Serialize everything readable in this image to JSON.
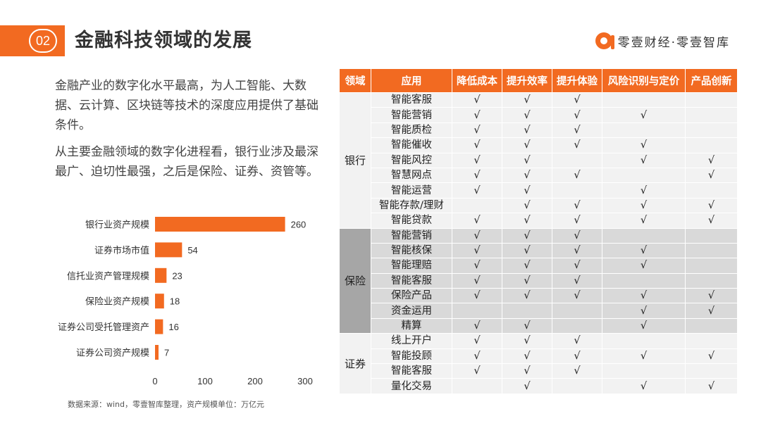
{
  "header": {
    "section_number": "02",
    "title": "金融科技领域的发展",
    "brand": "零壹财经·零壹智库"
  },
  "intro": {
    "p1": "金融产业的数字化水平最高，为人工智能、大数据、云计算、区块链等技术的深度应用提供了基础条件。",
    "p2": "从主要金融领域的数字化进程看，银行业涉及最深最广、迫切性最强，之后是保险、证券、资管等。"
  },
  "chart_data": {
    "type": "bar",
    "orientation": "horizontal",
    "categories": [
      "银行业资产规模",
      "证券市场市值",
      "信托业资产管理规模",
      "保险业资产规模",
      "证券公司受托管理资产",
      "证券公司资产规模"
    ],
    "values": [
      260,
      54,
      23,
      18,
      16,
      7
    ],
    "xlim": [
      0,
      300
    ],
    "xticks": [
      0,
      100,
      200,
      300
    ],
    "bar_color": "#f26a21",
    "source": "数据来源：wind，零壹智库整理，资产规模单位：万亿元"
  },
  "table": {
    "headers": [
      "领域",
      "应用",
      "降低成本",
      "提升效率",
      "提升体验",
      "风险识别与定价",
      "产品创新"
    ],
    "check": "√",
    "groups": [
      {
        "domain": "银行",
        "style": "bank",
        "rows": [
          {
            "app": "智能客服",
            "marks": [
              1,
              1,
              1,
              0,
              0
            ]
          },
          {
            "app": "智能营销",
            "marks": [
              1,
              1,
              1,
              1,
              0
            ]
          },
          {
            "app": "智能质检",
            "marks": [
              1,
              1,
              1,
              0,
              0
            ]
          },
          {
            "app": "智能催收",
            "marks": [
              1,
              1,
              1,
              1,
              0
            ]
          },
          {
            "app": "智能风控",
            "marks": [
              1,
              1,
              0,
              1,
              1
            ]
          },
          {
            "app": "智慧网点",
            "marks": [
              1,
              1,
              1,
              0,
              1
            ]
          },
          {
            "app": "智能运营",
            "marks": [
              1,
              1,
              0,
              1,
              0
            ]
          },
          {
            "app": "智能存款/理财",
            "marks": [
              0,
              1,
              1,
              1,
              1
            ]
          },
          {
            "app": "智能贷款",
            "marks": [
              1,
              1,
              1,
              1,
              1
            ]
          }
        ]
      },
      {
        "domain": "保险",
        "style": "ins",
        "rows": [
          {
            "app": "智能营销",
            "marks": [
              1,
              1,
              1,
              0,
              0
            ]
          },
          {
            "app": "智能核保",
            "marks": [
              1,
              1,
              1,
              1,
              0
            ]
          },
          {
            "app": "智能理赔",
            "marks": [
              1,
              1,
              1,
              1,
              0
            ]
          },
          {
            "app": "智能客服",
            "marks": [
              1,
              1,
              1,
              0,
              0
            ]
          },
          {
            "app": "保险产品",
            "marks": [
              1,
              1,
              1,
              1,
              1
            ]
          },
          {
            "app": "资金运用",
            "marks": [
              0,
              0,
              0,
              1,
              1
            ]
          },
          {
            "app": "精算",
            "marks": [
              1,
              1,
              0,
              1,
              0
            ]
          }
        ]
      },
      {
        "domain": "证券",
        "style": "sec",
        "rows": [
          {
            "app": "线上开户",
            "marks": [
              1,
              1,
              1,
              0,
              0
            ]
          },
          {
            "app": "智能投顾",
            "marks": [
              1,
              1,
              1,
              1,
              1
            ]
          },
          {
            "app": "智能客服",
            "marks": [
              1,
              1,
              1,
              0,
              0
            ]
          },
          {
            "app": "量化交易",
            "marks": [
              0,
              1,
              0,
              1,
              1
            ]
          }
        ]
      }
    ]
  }
}
